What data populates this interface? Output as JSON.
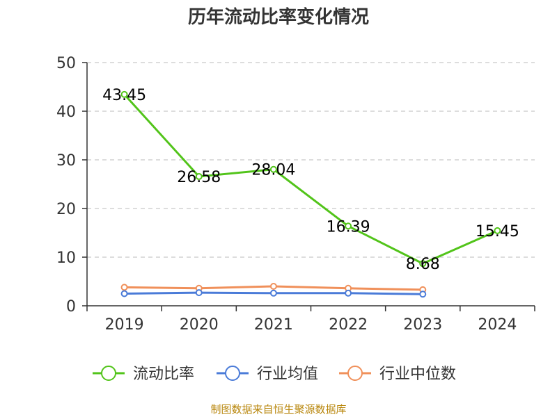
{
  "source_note": "制图数据来自恒生聚源数据库",
  "colors": {
    "grid": "#bbbbbb",
    "axis": "#333333",
    "source_text": "#b8860b"
  },
  "chart_data": {
    "type": "line",
    "title": "历年流动比率变化情况",
    "categories": [
      "2019",
      "2020",
      "2021",
      "2022",
      "2023",
      "2024"
    ],
    "ylim": [
      0,
      50
    ],
    "yticks": [
      0,
      10,
      20,
      30,
      40,
      50
    ],
    "grid": "horizontal-dashed",
    "legend_position": "bottom",
    "series": [
      {
        "name": "流动比率",
        "color": "#52c41a",
        "values": [
          43.45,
          26.58,
          28.04,
          16.39,
          8.68,
          15.45
        ],
        "labels": [
          "43.45",
          "26.58",
          "28.04",
          "16.39",
          "8.68",
          "15.45"
        ]
      },
      {
        "name": "行业均值",
        "color": "#4a7bd8",
        "values": [
          2.5,
          2.7,
          2.6,
          2.6,
          2.4,
          null
        ]
      },
      {
        "name": "行业中位数",
        "color": "#f0905a",
        "values": [
          3.8,
          3.6,
          4.0,
          3.6,
          3.3,
          null
        ]
      }
    ]
  }
}
